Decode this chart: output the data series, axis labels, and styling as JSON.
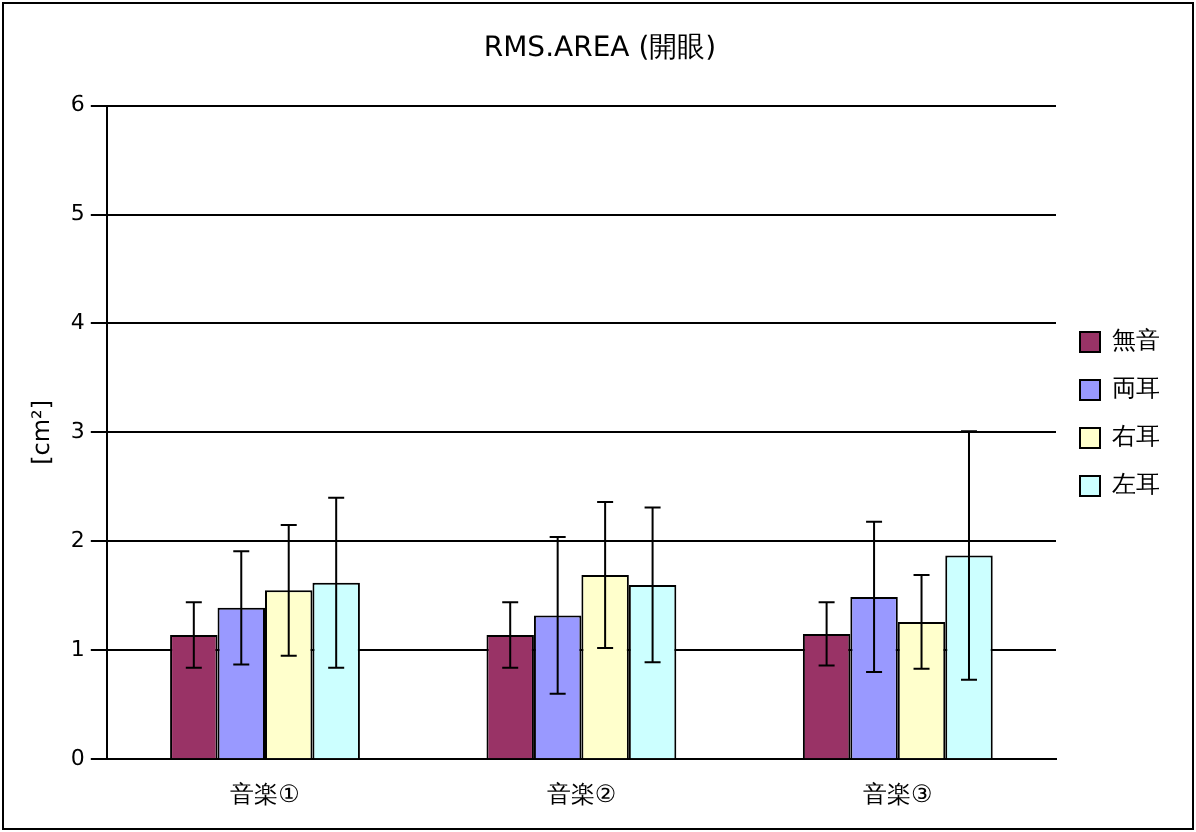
{
  "chart_data": {
    "type": "bar",
    "title": "RMS.AREA (開眼)",
    "ylabel": "[cm²]",
    "categories": [
      "音楽①",
      "音楽②",
      "音楽③"
    ],
    "series": [
      {
        "name": "無音",
        "color": "#993366",
        "values": [
          1.14,
          1.14,
          1.15
        ],
        "errors": [
          0.3,
          0.3,
          0.29
        ]
      },
      {
        "name": "両耳",
        "color": "#9999ff",
        "values": [
          1.39,
          1.32,
          1.49
        ],
        "errors": [
          0.52,
          0.72,
          0.69
        ]
      },
      {
        "name": "右耳",
        "color": "#ffffcc",
        "values": [
          1.55,
          1.69,
          1.26
        ],
        "errors": [
          0.6,
          0.67,
          0.43
        ]
      },
      {
        "name": "左耳",
        "color": "#ccffff",
        "values": [
          1.62,
          1.6,
          1.87
        ],
        "errors": [
          0.78,
          0.71,
          1.14
        ]
      }
    ],
    "ylim": [
      0,
      6
    ],
    "yticks": [
      0,
      1,
      2,
      3,
      4,
      5,
      6
    ],
    "grid": "y",
    "legend": "right"
  }
}
